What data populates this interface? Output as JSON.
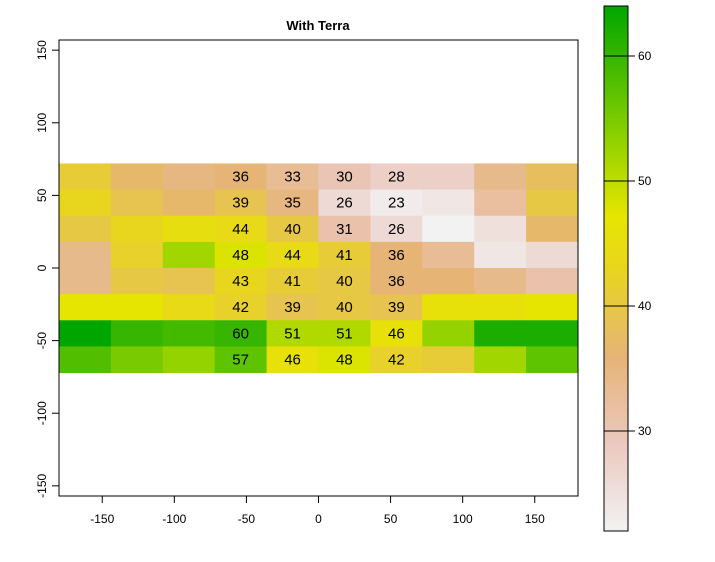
{
  "chart_data": {
    "type": "heatmap",
    "title": "With Terra",
    "xlabel": "",
    "ylabel": "",
    "xlim": [
      -180,
      180
    ],
    "ylim": [
      -157,
      157
    ],
    "x_ticks": [
      -150,
      -100,
      -50,
      0,
      50,
      100,
      150
    ],
    "y_ticks": [
      -150,
      -100,
      -50,
      0,
      50,
      100,
      150
    ],
    "grid": false,
    "legend": {
      "position": "right",
      "range": [
        22,
        64
      ],
      "ticks": [
        30,
        40,
        50,
        60
      ]
    },
    "raster": {
      "x_edges": [
        -180,
        -144,
        -108,
        -72,
        -36,
        0,
        36,
        72,
        108,
        144,
        180
      ],
      "y_edges": [
        72,
        54,
        36,
        18,
        0,
        -18,
        -36,
        -54,
        -72
      ],
      "values": [
        [
          41,
          37,
          35,
          36,
          33,
          30,
          28,
          28,
          34,
          38
        ],
        [
          43,
          39,
          37,
          39,
          35,
          26,
          23,
          24,
          32,
          40
        ],
        [
          40,
          43,
          45,
          44,
          40,
          31,
          26,
          22,
          25,
          37
        ],
        [
          34,
          42,
          52,
          48,
          44,
          41,
          36,
          33,
          24,
          26
        ],
        [
          34,
          40,
          39,
          43,
          41,
          40,
          36,
          36,
          34,
          31
        ],
        [
          47,
          47,
          44,
          42,
          39,
          40,
          39,
          46,
          46,
          47
        ],
        [
          64,
          60,
          59,
          60,
          51,
          51,
          46,
          53,
          62,
          62
        ],
        [
          58,
          55,
          53,
          57,
          46,
          48,
          42,
          41,
          52,
          57
        ]
      ],
      "labels": [
        [
          "",
          "",
          "",
          "36",
          "33",
          "30",
          "28",
          "",
          "",
          ""
        ],
        [
          "",
          "",
          "",
          "39",
          "35",
          "26",
          "23",
          "",
          "",
          ""
        ],
        [
          "",
          "",
          "",
          "44",
          "40",
          "31",
          "26",
          "",
          "",
          ""
        ],
        [
          "",
          "",
          "",
          "48",
          "44",
          "41",
          "36",
          "",
          "",
          ""
        ],
        [
          "",
          "",
          "",
          "43",
          "41",
          "40",
          "36",
          "",
          "",
          ""
        ],
        [
          "",
          "",
          "",
          "42",
          "39",
          "40",
          "39",
          "",
          "",
          ""
        ],
        [
          "",
          "",
          "",
          "60",
          "51",
          "51",
          "46",
          "",
          "",
          ""
        ],
        [
          "",
          "",
          "",
          "57",
          "46",
          "48",
          "42",
          "",
          "",
          ""
        ]
      ]
    }
  }
}
